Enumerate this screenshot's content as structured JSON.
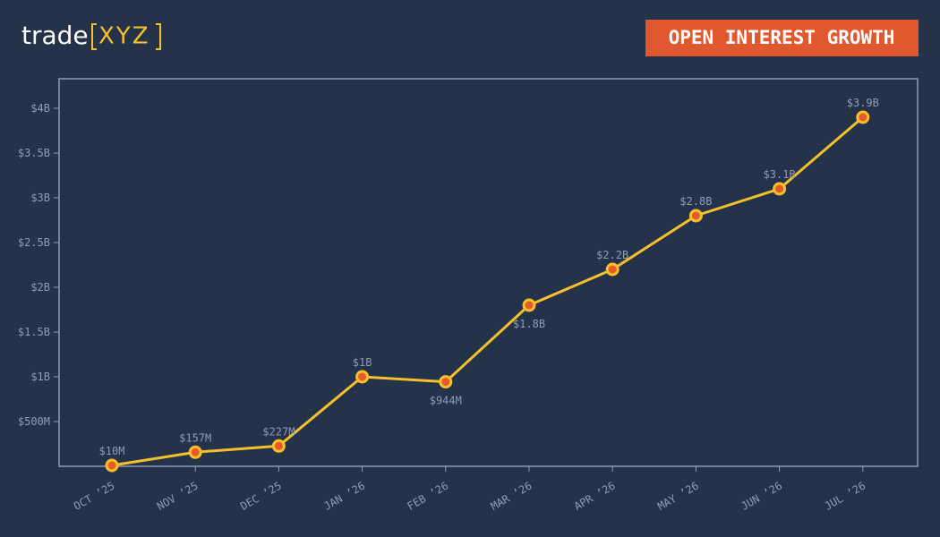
{
  "brand": {
    "name": "trade",
    "mark": "XYZ"
  },
  "chart_data": {
    "type": "line",
    "title": "OPEN INTEREST GROWTH",
    "categories": [
      "OCT ’25",
      "NOV ’25",
      "DEC ’25",
      "JAN ’26",
      "FEB ’26",
      "MAR ’26",
      "APR ’26",
      "MAY ’26",
      "JUN ’26",
      "JUL ’26"
    ],
    "series": [
      {
        "name": "Open Interest",
        "color": "#f5c02c",
        "values": [
          0.01,
          0.157,
          0.227,
          1,
          0.944,
          1.8,
          2.2,
          2.8,
          3.1,
          3.9
        ],
        "value_labels": [
          "$10M",
          "$157M",
          "$227M",
          "$1B",
          "$944M",
          "$1.8B",
          "$2.2B",
          "$2.8B",
          "$3.1B",
          "$3.9B"
        ]
      }
    ],
    "ylim": [
      0,
      4.33
    ],
    "yticks": [
      {
        "value": 0.5,
        "label": "$500M"
      },
      {
        "value": 1,
        "label": "$1B"
      },
      {
        "value": 1.5,
        "label": "$1.5B"
      },
      {
        "value": 2,
        "label": "$2B"
      },
      {
        "value": 2.5,
        "label": "$2.5B"
      },
      {
        "value": 3,
        "label": "$3B"
      },
      {
        "value": 3.5,
        "label": "$3.5B"
      },
      {
        "value": 4,
        "label": "$4B"
      }
    ],
    "marker_color": "#e65a2a"
  }
}
